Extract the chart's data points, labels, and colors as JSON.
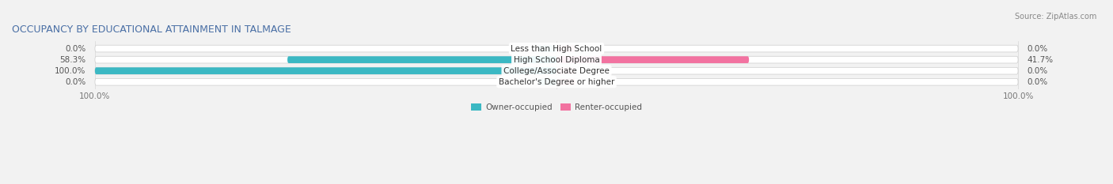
{
  "title": "OCCUPANCY BY EDUCATIONAL ATTAINMENT IN TALMAGE",
  "source": "Source: ZipAtlas.com",
  "categories": [
    "Less than High School",
    "High School Diploma",
    "College/Associate Degree",
    "Bachelor's Degree or higher"
  ],
  "owner_pct": [
    0.0,
    58.3,
    100.0,
    0.0
  ],
  "renter_pct": [
    0.0,
    41.7,
    0.0,
    0.0
  ],
  "owner_color": "#3BB8C3",
  "renter_color": "#F272A0",
  "owner_color_light": "#90D4DA",
  "renter_color_light": "#F5AABF",
  "bg_color": "#f2f2f2",
  "bar_bg_color": "#e0e0e0",
  "bar_height": 0.62,
  "figsize": [
    14.06,
    2.33
  ],
  "dpi": 100,
  "title_fontsize": 9,
  "label_fontsize": 7.5,
  "cat_fontsize": 7.5,
  "legend_fontsize": 7.5,
  "source_fontsize": 7
}
